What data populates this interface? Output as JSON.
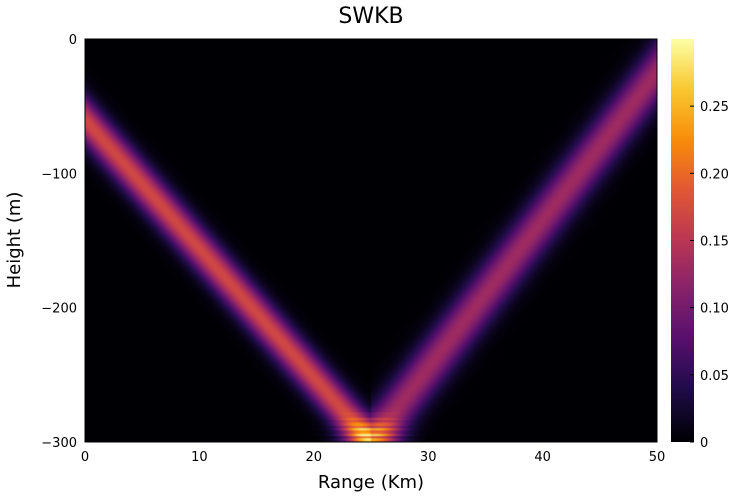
{
  "chart_data": {
    "type": "heatmap",
    "title": "SWKB",
    "xlabel": "Range (Km)",
    "ylabel": "Height (m)",
    "xlim": [
      0,
      50
    ],
    "ylim": [
      -300,
      0
    ],
    "x_ticks": [
      "0",
      "10",
      "20",
      "30",
      "40",
      "50"
    ],
    "y_ticks": [
      "0",
      "−100",
      "−200",
      "−300"
    ],
    "colormap": "inferno",
    "colorbar": {
      "range": [
        0,
        0.3
      ],
      "ticks": [
        "0",
        "0.05",
        "0.10",
        "0.15",
        "0.20",
        "0.25"
      ]
    },
    "grid": false,
    "beams": [
      {
        "name": "",
        "start": [
          0,
          -60
        ],
        "end": [
          25,
          -300
        ],
        "peak": 0.17,
        "width_m": 18
      },
      {
        "name": "",
        "start": [
          25,
          -300
        ],
        "end": [
          50,
          -25
        ],
        "peak": 0.13,
        "width_m": 24
      }
    ],
    "focus": {
      "x": 25,
      "y": -295,
      "peak": 0.28
    }
  }
}
